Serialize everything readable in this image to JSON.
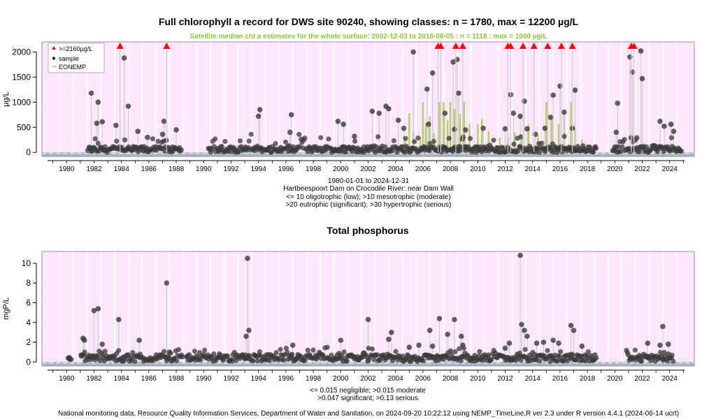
{
  "chart_data": [
    {
      "type": "scatter",
      "title": "Full chlorophyll a record for DWS site 90240, showing classes: n = 1780, max = 12200 µg/L",
      "subtitle": "Satellite median chl a estimates for the whole surface: 2002-12-03 to 2018-08-05 : n = 1118 : max = 1000 µg/L",
      "ylabel": "µg/L",
      "xlim": [
        1978.2,
        2025.8
      ],
      "ylim": [
        -80,
        2200
      ],
      "yticks": [
        0,
        500,
        1000,
        1500,
        2000
      ],
      "xticks": [
        1980,
        1982,
        1984,
        1986,
        1988,
        1990,
        1992,
        1994,
        1996,
        1998,
        2000,
        2002,
        2004,
        2006,
        2008,
        2010,
        2012,
        2014,
        2016,
        2018,
        2020,
        2022,
        2024
      ],
      "legend_position": "top-left",
      "legend": [
        ">=2160µg/L",
        "sample",
        "EONEMP"
      ],
      "caption_lines": [
        "1980-01-01 to 2024-12-31",
        "Hartbeespoort Dam on Crocodile River: near Dam Wall",
        "<= 10 oligotrophic (low); >10 mesotrophic (moderate)",
        ">20 eutrophic (significant); >30 hypertrophic (serious)"
      ],
      "colors": {
        "panel_bg": "#ffe6ff",
        "vline": "#ffffff",
        "point": "#3a3a3a",
        "flag": "#ff0000",
        "satellite": "#a8c850",
        "sub_text": "#8cc63f",
        "threshold_band": "#a9b8c8"
      },
      "sample_windows": [
        [
          1981.5,
          1988.4
        ],
        [
          1990.3,
          2018.7
        ],
        [
          2019.8,
          2024.9
        ]
      ],
      "flag_x": [
        1983.9,
        1987.3,
        2007.1,
        2007.3,
        2008.4,
        2008.9,
        2012.2,
        2012.4,
        2013.3,
        2014.1,
        2015.1,
        2016.1,
        2016.9,
        2021.2,
        2021.4
      ],
      "tall_points": [
        {
          "x": 1981.8,
          "y": 1180
        },
        {
          "x": 1982.3,
          "y": 1000
        },
        {
          "x": 1982.2,
          "y": 580
        },
        {
          "x": 1982.6,
          "y": 610
        },
        {
          "x": 1984.2,
          "y": 1880
        },
        {
          "x": 1984.5,
          "y": 920
        },
        {
          "x": 1983.6,
          "y": 540
        },
        {
          "x": 1985.2,
          "y": 420
        },
        {
          "x": 1987.1,
          "y": 620
        },
        {
          "x": 1987.0,
          "y": 360
        },
        {
          "x": 1988.0,
          "y": 450
        },
        {
          "x": 1985.9,
          "y": 300
        },
        {
          "x": 1994.1,
          "y": 850
        },
        {
          "x": 1994.0,
          "y": 720
        },
        {
          "x": 1996.4,
          "y": 750
        },
        {
          "x": 1996.3,
          "y": 400
        },
        {
          "x": 1999.8,
          "y": 620
        },
        {
          "x": 2000.2,
          "y": 560
        },
        {
          "x": 2001.0,
          "y": 320
        },
        {
          "x": 2002.3,
          "y": 820
        },
        {
          "x": 2002.8,
          "y": 780
        },
        {
          "x": 2003.3,
          "y": 920
        },
        {
          "x": 2003.5,
          "y": 870
        },
        {
          "x": 2004.2,
          "y": 640
        },
        {
          "x": 2004.6,
          "y": 480
        },
        {
          "x": 2005.3,
          "y": 2000
        },
        {
          "x": 2006.3,
          "y": 1260
        },
        {
          "x": 2006.7,
          "y": 1580
        },
        {
          "x": 2006.4,
          "y": 560
        },
        {
          "x": 2007.6,
          "y": 780
        },
        {
          "x": 2008.2,
          "y": 1800
        },
        {
          "x": 2008.5,
          "y": 1850
        },
        {
          "x": 2008.6,
          "y": 1180
        },
        {
          "x": 2008.3,
          "y": 460
        },
        {
          "x": 2009.1,
          "y": 450
        },
        {
          "x": 2010.4,
          "y": 480
        },
        {
          "x": 2012.0,
          "y": 470
        },
        {
          "x": 2012.4,
          "y": 1150
        },
        {
          "x": 2012.6,
          "y": 780
        },
        {
          "x": 2013.1,
          "y": 720
        },
        {
          "x": 2013.4,
          "y": 1020
        },
        {
          "x": 2013.6,
          "y": 470
        },
        {
          "x": 2014.2,
          "y": 360
        },
        {
          "x": 2014.9,
          "y": 480
        },
        {
          "x": 2015.3,
          "y": 700
        },
        {
          "x": 2015.5,
          "y": 1140
        },
        {
          "x": 2016.0,
          "y": 1320
        },
        {
          "x": 2016.3,
          "y": 800
        },
        {
          "x": 2016.9,
          "y": 480
        },
        {
          "x": 2017.1,
          "y": 1240
        },
        {
          "x": 2020.2,
          "y": 980
        },
        {
          "x": 2020.1,
          "y": 400
        },
        {
          "x": 2021.1,
          "y": 1900
        },
        {
          "x": 2021.3,
          "y": 1600
        },
        {
          "x": 2021.6,
          "y": 290
        },
        {
          "x": 2021.9,
          "y": 2020
        },
        {
          "x": 2022.0,
          "y": 1470
        },
        {
          "x": 2023.3,
          "y": 620
        },
        {
          "x": 2023.6,
          "y": 520
        },
        {
          "x": 2024.1,
          "y": 560
        },
        {
          "x": 2024.3,
          "y": 420
        }
      ],
      "satellite_bars": [
        {
          "x": 2004.7,
          "y": 260
        },
        {
          "x": 2005.0,
          "y": 780
        },
        {
          "x": 2005.3,
          "y": 420
        },
        {
          "x": 2005.8,
          "y": 300
        },
        {
          "x": 2006.0,
          "y": 1000
        },
        {
          "x": 2006.2,
          "y": 580
        },
        {
          "x": 2006.5,
          "y": 720
        },
        {
          "x": 2006.8,
          "y": 380
        },
        {
          "x": 2007.2,
          "y": 1000
        },
        {
          "x": 2007.5,
          "y": 1000
        },
        {
          "x": 2007.8,
          "y": 640
        },
        {
          "x": 2008.0,
          "y": 1000
        },
        {
          "x": 2008.3,
          "y": 860
        },
        {
          "x": 2008.7,
          "y": 760
        },
        {
          "x": 2009.0,
          "y": 1000
        },
        {
          "x": 2009.4,
          "y": 560
        },
        {
          "x": 2010.0,
          "y": 560
        },
        {
          "x": 2010.3,
          "y": 660
        },
        {
          "x": 2010.8,
          "y": 420
        },
        {
          "x": 2011.6,
          "y": 300
        },
        {
          "x": 2012.2,
          "y": 300
        },
        {
          "x": 2012.7,
          "y": 400
        },
        {
          "x": 2013.2,
          "y": 320
        },
        {
          "x": 2013.7,
          "y": 560
        },
        {
          "x": 2014.4,
          "y": 350
        },
        {
          "x": 2015.0,
          "y": 1000
        },
        {
          "x": 2015.4,
          "y": 720
        },
        {
          "x": 2015.9,
          "y": 560
        },
        {
          "x": 2016.3,
          "y": 720
        },
        {
          "x": 2016.8,
          "y": 1000
        },
        {
          "x": 2017.1,
          "y": 480
        },
        {
          "x": 2017.6,
          "y": 260
        }
      ]
    },
    {
      "type": "scatter",
      "title": "Total phosphorus",
      "ylabel": "mgP/L",
      "xlim": [
        1978.2,
        2025.8
      ],
      "ylim": [
        -0.4,
        11.2
      ],
      "yticks": [
        0,
        2,
        4,
        6,
        8,
        10
      ],
      "xticks": [
        1980,
        1982,
        1984,
        1986,
        1988,
        1990,
        1992,
        1994,
        1996,
        1998,
        2000,
        2002,
        2004,
        2006,
        2008,
        2010,
        2012,
        2014,
        2016,
        2018,
        2020,
        2022,
        2024
      ],
      "caption_lines": [
        "<= 0.015 negligible; >0.015 moderate",
        ">0.047 significant; >0.13 serious"
      ],
      "colors": {
        "panel_bg": "#ffe6ff",
        "vline": "#ffffff",
        "point": "#3a3a3a",
        "threshold_band": "#a9b8c8"
      },
      "sample_windows": [
        [
          1980.1,
          1980.4
        ],
        [
          1981.0,
          1988.5
        ],
        [
          1988.7,
          2018.7
        ],
        [
          2020.8,
          2024.3
        ]
      ],
      "tall_points": [
        {
          "x": 1980.2,
          "y": 0.35
        },
        {
          "x": 1981.2,
          "y": 2.4
        },
        {
          "x": 1981.3,
          "y": 2.2
        },
        {
          "x": 1982.0,
          "y": 5.2
        },
        {
          "x": 1982.3,
          "y": 5.4
        },
        {
          "x": 1982.6,
          "y": 1.8
        },
        {
          "x": 1983.8,
          "y": 4.3
        },
        {
          "x": 1985.3,
          "y": 2.2
        },
        {
          "x": 1987.3,
          "y": 8.0
        },
        {
          "x": 1987.5,
          "y": 1.0
        },
        {
          "x": 1993.2,
          "y": 10.5
        },
        {
          "x": 1993.3,
          "y": 3.2
        },
        {
          "x": 1993.1,
          "y": 2.6
        },
        {
          "x": 1996.5,
          "y": 1.7
        },
        {
          "x": 2000.0,
          "y": 2.2
        },
        {
          "x": 2002.0,
          "y": 4.3
        },
        {
          "x": 2003.5,
          "y": 2.3
        },
        {
          "x": 2003.7,
          "y": 3.0
        },
        {
          "x": 2005.0,
          "y": 1.5
        },
        {
          "x": 2005.7,
          "y": 1.7
        },
        {
          "x": 2006.5,
          "y": 3.2
        },
        {
          "x": 2006.7,
          "y": 1.6
        },
        {
          "x": 2007.2,
          "y": 4.4
        },
        {
          "x": 2007.8,
          "y": 2.8
        },
        {
          "x": 2008.3,
          "y": 4.3
        },
        {
          "x": 2008.8,
          "y": 2.6
        },
        {
          "x": 2008.9,
          "y": 1.7
        },
        {
          "x": 2012.0,
          "y": 1.4
        },
        {
          "x": 2012.3,
          "y": 1.9
        },
        {
          "x": 2013.1,
          "y": 10.8
        },
        {
          "x": 2013.2,
          "y": 3.8
        },
        {
          "x": 2013.4,
          "y": 3.2
        },
        {
          "x": 2013.6,
          "y": 2.6
        },
        {
          "x": 2014.3,
          "y": 1.9
        },
        {
          "x": 2014.8,
          "y": 2.0
        },
        {
          "x": 2015.5,
          "y": 2.2
        },
        {
          "x": 2015.9,
          "y": 1.9
        },
        {
          "x": 2016.8,
          "y": 3.7
        },
        {
          "x": 2017.0,
          "y": 3.2
        },
        {
          "x": 2017.6,
          "y": 1.6
        },
        {
          "x": 2022.4,
          "y": 1.9
        },
        {
          "x": 2023.5,
          "y": 3.6
        },
        {
          "x": 2023.3,
          "y": 1.7
        },
        {
          "x": 2023.9,
          "y": 1.8
        }
      ]
    }
  ],
  "footer": "National monitoring data, Resource Quality Information Services, Department of Water and Sanitation, on 2024-09-20 10:22:12 using NEMP_TimeLine.R ver 2.3 under R version 4.4.1 (2024-06-14 ucrt)"
}
